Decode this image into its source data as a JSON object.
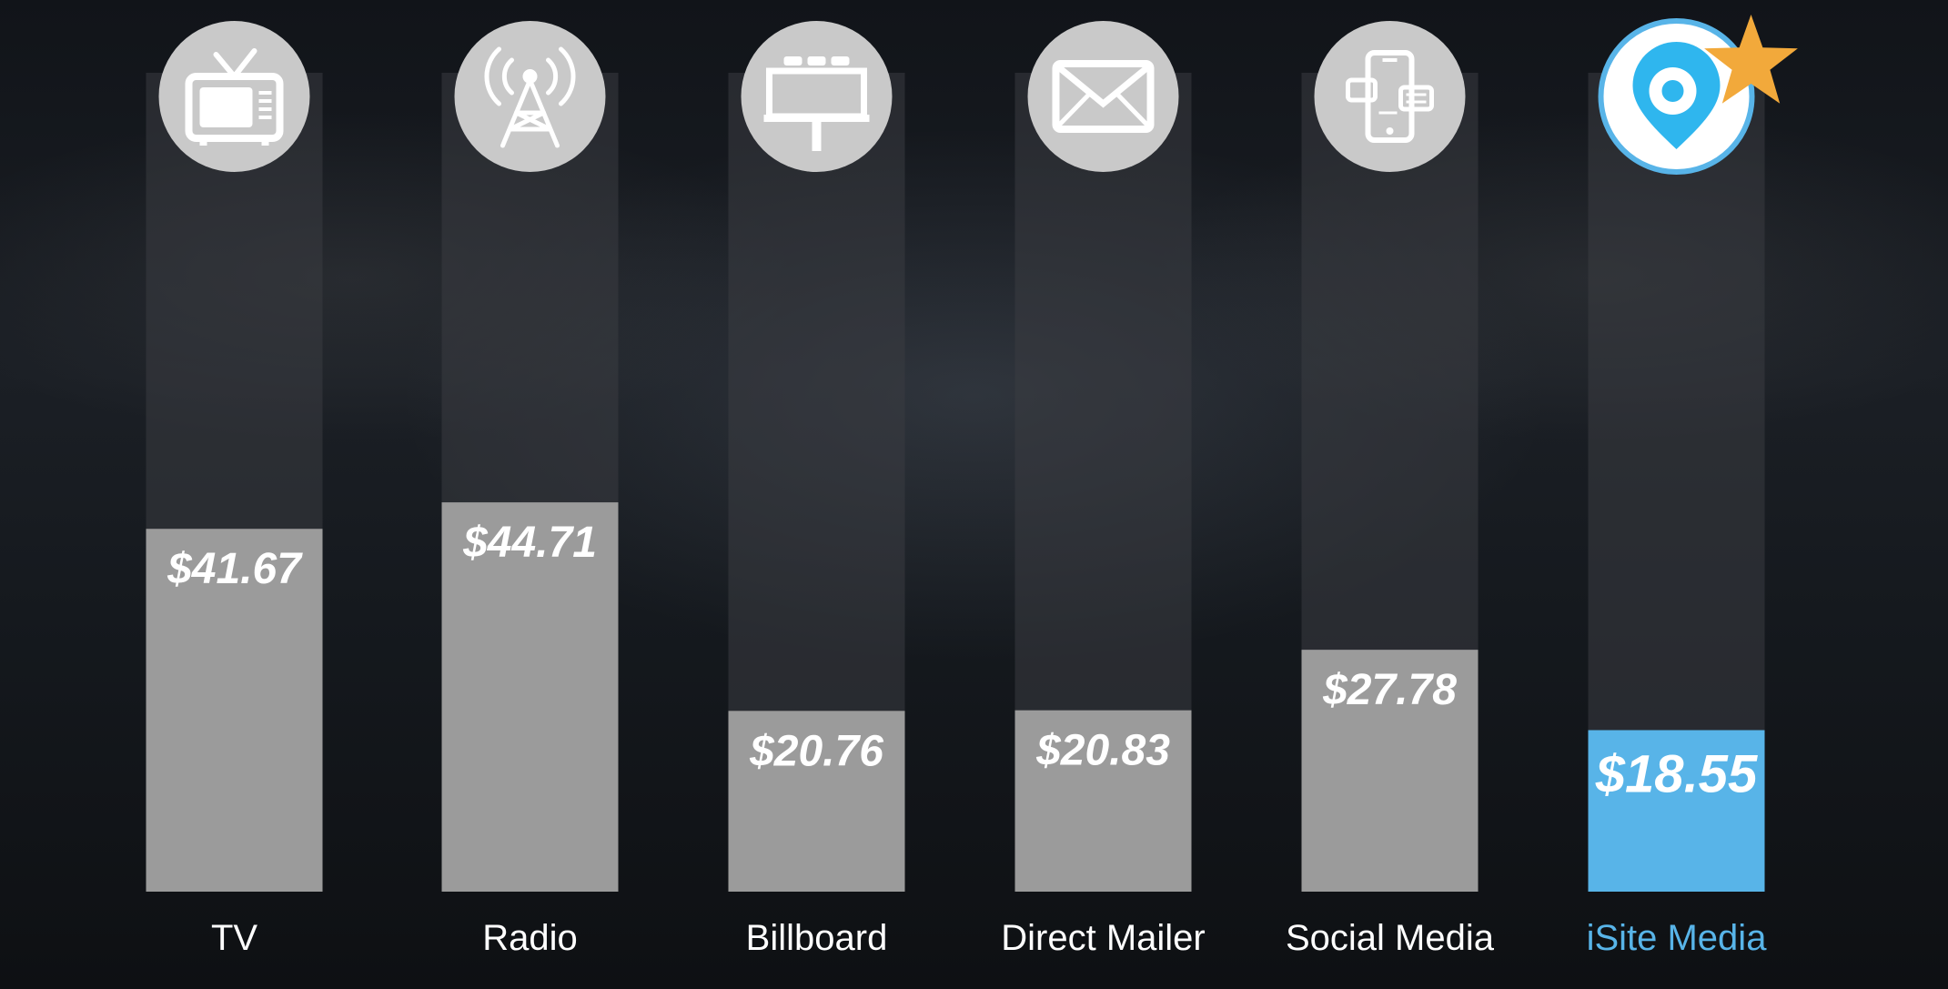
{
  "chart_data": {
    "type": "bar",
    "categories": [
      "TV",
      "Radio",
      "Billboard",
      "Direct Mailer",
      "Social Media",
      "iSite Media"
    ],
    "values": [
      41.67,
      44.71,
      20.76,
      20.83,
      27.78,
      18.55
    ],
    "data_labels": [
      "$41.67",
      "$44.71",
      "$20.76",
      "$20.83",
      "$27.78",
      "$18.55"
    ],
    "icons": [
      "tv-icon",
      "radio-tower-icon",
      "billboard-icon",
      "envelope-icon",
      "smartphone-icon",
      "map-pin-icon"
    ],
    "highlight_index": 5,
    "highlight_badge": "star-icon",
    "ylim": [
      0,
      70
    ],
    "grid": false,
    "legend": "none",
    "colors": {
      "bar": "#9b9b9b",
      "highlight_bar": "#58b4e8",
      "track": "#3a3d42",
      "icon_circle": "#c9c9c9",
      "category_text": "#ffffff",
      "highlight_text": "#58b4e8",
      "star": "#f2a93b"
    }
  }
}
